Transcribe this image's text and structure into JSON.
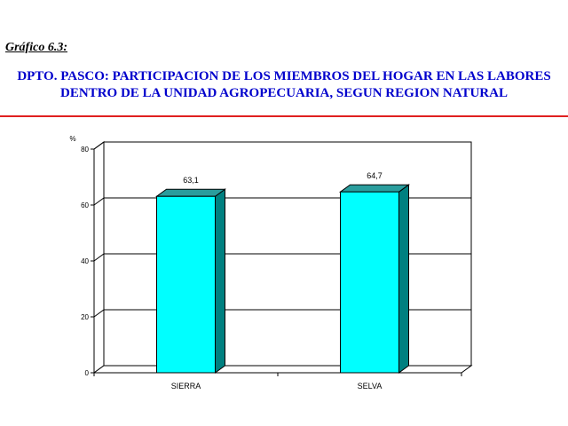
{
  "figure_label": "Gráfico 6.3:",
  "title_lines": [
    "DPTO. PASCO: PARTICIPACION DE LOS MIEMBROS DEL HOGAR EN LAS LABORES",
    "DENTRO DE LA UNIDAD AGROPECUARIA, SEGUN REGION NATURAL"
  ],
  "colors": {
    "title": "#0000cc",
    "rule": "#e02020",
    "bar_front": "#00ffff",
    "bar_side": "#008080",
    "bar_top": "#2a9d9d"
  },
  "chart_data": {
    "type": "bar",
    "categories": [
      "SIERRA",
      "SELVA"
    ],
    "values": [
      63.1,
      64.7
    ],
    "value_labels": [
      "63,1",
      "64,7"
    ],
    "title": "",
    "xlabel": "",
    "ylabel": "%",
    "ylim": [
      0,
      80
    ],
    "yticks": [
      0,
      20,
      40,
      60,
      80
    ],
    "grid": true,
    "legend": "none"
  }
}
